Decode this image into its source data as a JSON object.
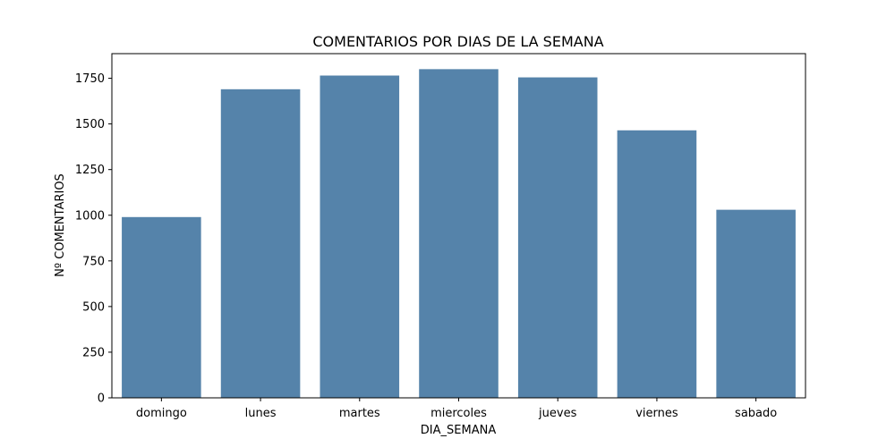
{
  "chart_data": {
    "type": "bar",
    "title": "COMENTARIOS POR DIAS DE LA SEMANA",
    "xlabel": "DIA_SEMANA",
    "ylabel": "Nº COMENTARIOS",
    "categories": [
      "domingo",
      "lunes",
      "martes",
      "miercoles",
      "jueves",
      "viernes",
      "sabado"
    ],
    "values": [
      990,
      1690,
      1765,
      1800,
      1755,
      1465,
      1030
    ],
    "ylim": [
      0,
      1885
    ],
    "yticks": [
      0,
      250,
      500,
      750,
      1000,
      1250,
      1500,
      1750
    ],
    "grid": false,
    "bar_color": "#5583aa"
  }
}
